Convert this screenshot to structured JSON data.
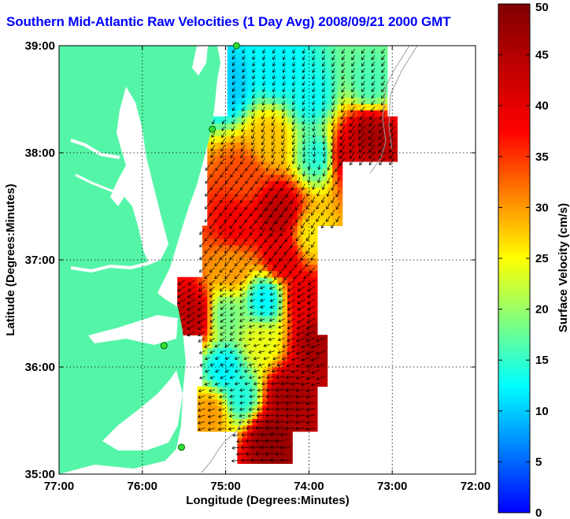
{
  "title": "Southern Mid-Atlantic Raw Velocities (1 Day Avg) 2008/09/21 2000 GMT",
  "chart_data": {
    "type": "heatmap",
    "subtype": "ocean surface current map with velocity vectors",
    "xlabel": "Longitude (Degrees:Minutes)",
    "ylabel": "Latitude (Degrees:Minutes)",
    "xlim": [
      -77.0,
      -72.0
    ],
    "ylim": [
      35.0,
      39.0
    ],
    "x_ticks": [
      {
        "value": -77,
        "label": "77:00"
      },
      {
        "value": -76,
        "label": "76:00"
      },
      {
        "value": -75,
        "label": "75:00"
      },
      {
        "value": -74,
        "label": "74:00"
      },
      {
        "value": -73,
        "label": "73:00"
      },
      {
        "value": -72,
        "label": "72:00"
      }
    ],
    "y_ticks": [
      {
        "value": 35,
        "label": "35:00"
      },
      {
        "value": 36,
        "label": "36:00"
      },
      {
        "value": 37,
        "label": "37:00"
      },
      {
        "value": 38,
        "label": "38:00"
      },
      {
        "value": 39,
        "label": "39:00"
      }
    ],
    "grid": true,
    "colorbar": {
      "label": "Surface Velocity (cm/s)",
      "range": [
        0,
        50
      ],
      "ticks": [
        0,
        5,
        10,
        15,
        20,
        25,
        30,
        35,
        40,
        45,
        50
      ],
      "placement": "right"
    },
    "land_color": "#55f5a8",
    "water_color": "#ffffff",
    "stations": [
      {
        "lon": -74.87,
        "lat": 39.0
      },
      {
        "lon": -75.16,
        "lat": 38.22
      },
      {
        "lon": -75.74,
        "lat": 36.2
      },
      {
        "lon": -75.53,
        "lat": 35.25
      }
    ],
    "velocity_regions": [
      {
        "lon": -74.4,
        "lat": 38.75,
        "speed": 12,
        "dir": 250
      },
      {
        "lon": -75.0,
        "lat": 38.6,
        "speed": 10,
        "dir": 240
      },
      {
        "lon": -74.0,
        "lat": 38.5,
        "speed": 13,
        "dir": 245
      },
      {
        "lon": -73.3,
        "lat": 38.6,
        "speed": 16,
        "dir": 235
      },
      {
        "lon": -73.3,
        "lat": 38.15,
        "speed": 46,
        "dir": 230
      },
      {
        "lon": -73.6,
        "lat": 37.95,
        "speed": 42,
        "dir": 235
      },
      {
        "lon": -73.9,
        "lat": 37.95,
        "speed": 14,
        "dir": 260
      },
      {
        "lon": -74.5,
        "lat": 38.1,
        "speed": 28,
        "dir": 245
      },
      {
        "lon": -74.8,
        "lat": 37.75,
        "speed": 34,
        "dir": 235
      },
      {
        "lon": -74.4,
        "lat": 37.4,
        "speed": 44,
        "dir": 240
      },
      {
        "lon": -74.9,
        "lat": 37.3,
        "speed": 38,
        "dir": 230
      },
      {
        "lon": -74.35,
        "lat": 37.0,
        "speed": 40,
        "dir": 230
      },
      {
        "lon": -74.95,
        "lat": 36.9,
        "speed": 30,
        "dir": 225
      },
      {
        "lon": -74.0,
        "lat": 37.2,
        "speed": 26,
        "dir": 240
      },
      {
        "lon": -74.55,
        "lat": 36.6,
        "speed": 12,
        "dir": 200
      },
      {
        "lon": -74.1,
        "lat": 36.6,
        "speed": 40,
        "dir": 210
      },
      {
        "lon": -75.4,
        "lat": 36.45,
        "speed": 44,
        "dir": 210
      },
      {
        "lon": -75.05,
        "lat": 36.45,
        "speed": 18,
        "dir": 220
      },
      {
        "lon": -73.95,
        "lat": 36.2,
        "speed": 46,
        "dir": 200
      },
      {
        "lon": -74.6,
        "lat": 36.2,
        "speed": 24,
        "dir": 195
      },
      {
        "lon": -75.05,
        "lat": 35.95,
        "speed": 12,
        "dir": 200
      },
      {
        "lon": -74.85,
        "lat": 35.7,
        "speed": 14,
        "dir": 190
      },
      {
        "lon": -74.3,
        "lat": 35.7,
        "speed": 46,
        "dir": 185
      },
      {
        "lon": -74.5,
        "lat": 35.3,
        "speed": 48,
        "dir": 180
      },
      {
        "lon": -75.2,
        "lat": 35.55,
        "speed": 30,
        "dir": 195
      }
    ]
  }
}
